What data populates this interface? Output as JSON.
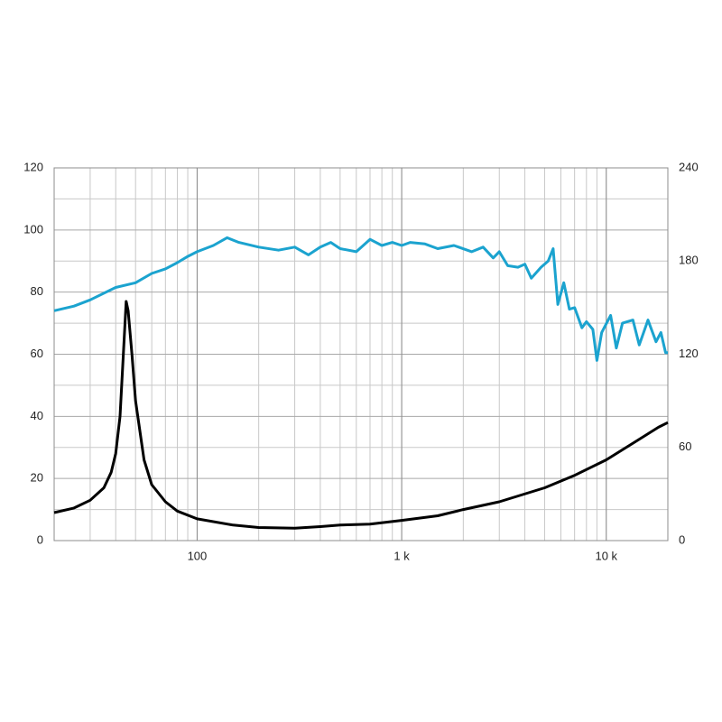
{
  "chart_data": {
    "type": "line",
    "xscale": "log",
    "xlim": [
      20,
      20000
    ],
    "xticks": [
      {
        "value": 100,
        "label": "100"
      },
      {
        "value": 1000,
        "label": "1 k"
      },
      {
        "value": 10000,
        "label": "10 k"
      }
    ],
    "ylim": [
      0,
      120
    ],
    "yticks": [
      0,
      20,
      40,
      60,
      80,
      100,
      120
    ],
    "y2lim": [
      0,
      240
    ],
    "y2ticks": [
      0,
      60,
      120,
      180,
      240
    ],
    "grid": true,
    "minor_grid": true,
    "series": [
      {
        "color": "#1ba3cf",
        "x": [
          20,
          25,
          30,
          40,
          50,
          60,
          70,
          80,
          90,
          100,
          120,
          140,
          160,
          200,
          250,
          300,
          350,
          400,
          450,
          500,
          600,
          700,
          800,
          900,
          1000,
          1100,
          1300,
          1500,
          1800,
          2200,
          2500,
          2800,
          3000,
          3300,
          3700,
          4000,
          4300,
          4800,
          5200,
          5500,
          5800,
          6200,
          6600,
          7000,
          7600,
          8000,
          8600,
          9000,
          9500,
          10500,
          11200,
          12000,
          13500,
          14500,
          16000,
          17500,
          18500,
          19500,
          20000
        ],
        "values": [
          74,
          75.5,
          77.5,
          81.5,
          83,
          86,
          87.5,
          89.5,
          91.5,
          93,
          95,
          97.5,
          96,
          94.5,
          93.5,
          94.5,
          92,
          94.5,
          96,
          94,
          93,
          97,
          95,
          96,
          95,
          96,
          95.5,
          94,
          95,
          93,
          94.5,
          91,
          93,
          88.5,
          88,
          89,
          84.5,
          88,
          90,
          94,
          76,
          83,
          74.5,
          75,
          68.5,
          70.5,
          68,
          58,
          67,
          72.5,
          62,
          70,
          71,
          63,
          71,
          64,
          67,
          60.5,
          60.5
        ]
      },
      {
        "color": "#000000",
        "x": [
          20,
          25,
          30,
          35,
          38,
          40,
          42,
          44,
          45,
          46,
          48,
          50,
          55,
          60,
          70,
          80,
          100,
          150,
          200,
          300,
          400,
          500,
          700,
          1000,
          1500,
          2000,
          3000,
          5000,
          7000,
          10000,
          14000,
          18000,
          20000
        ],
        "values": [
          9,
          10.5,
          13,
          17,
          22,
          28,
          40,
          65,
          77,
          74,
          60,
          45,
          26,
          18,
          12.5,
          9.5,
          7,
          5,
          4.2,
          4,
          4.5,
          5,
          5.3,
          6.5,
          8,
          10,
          12.5,
          17,
          21,
          26,
          32,
          36.5,
          38
        ]
      }
    ]
  }
}
